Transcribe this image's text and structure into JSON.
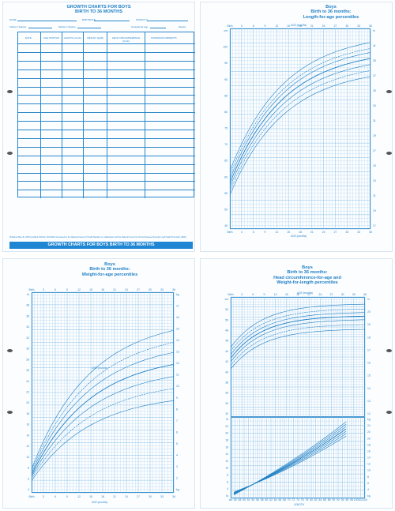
{
  "form": {
    "title_line1": "GROWTH CHARTS FOR BOYS",
    "title_line2": "BIRTH TO 36 MONTHS",
    "field_name": "NAME",
    "field_birthdate": "BIRTHDATE",
    "field_patient": "PATIENT #",
    "field_fathers": "Father's Stature",
    "field_mothers": "Mother's Stature",
    "field_gestational": "Gestational Age",
    "field_weeks": "Weeks",
    "columns": [
      "DATE",
      "AGE MONTHS",
      "LENGTH (cm/in)",
      "WEIGHT (kg/lb)",
      "HEAD CIRCUMFERENCE (cm/in)",
      "FINDINGS/COMMENTS"
    ],
    "footer_note": "Published May 30, 2000 (modified 4/20/01). SOURCE: Developed by the National Center for Health Statistics in collaboration with the National Center for Chronic Disease Prevention and Health Promotion (2000).",
    "banner": "GROWTH CHARTS FOR BOYS BIRTH TO 36 MONTHS"
  },
  "chart_length": {
    "title": [
      "Boys",
      "Birth to 36 months:",
      "Length-for-age percentiles"
    ],
    "top_label": "AGE (months)",
    "bottom_label": "AGE (months)",
    "ages": [
      "Birth",
      "3",
      "6",
      "9",
      "12",
      "15",
      "18",
      "21",
      "24",
      "27",
      "30",
      "33",
      "36"
    ],
    "left_ticks": [
      "cm",
      "100",
      "95",
      "90",
      "85",
      "80",
      "75",
      "70",
      "65",
      "60",
      "55",
      "50",
      "45"
    ],
    "right_ticks": [
      "in",
      "41",
      "39",
      "37",
      "35",
      "33",
      "31",
      "29",
      "27",
      "25",
      "23",
      "21",
      "19",
      "17"
    ]
  },
  "chart_weight": {
    "title": [
      "Boys",
      "Birth to 36 months:",
      "Weight-for-age percentiles"
    ],
    "top_label": "AGE (months)",
    "bottom_label": "AGE (months)",
    "ages": [
      "Birth",
      "3",
      "6",
      "9",
      "12",
      "15",
      "18",
      "21",
      "24",
      "27",
      "30",
      "33",
      "36"
    ],
    "left_ticks": [
      "lb",
      "38",
      "36",
      "34",
      "32",
      "30",
      "28",
      "26",
      "24",
      "22",
      "20",
      "18",
      "16",
      "14",
      "12",
      "10",
      "8",
      "6",
      "4"
    ],
    "right_ticks": [
      "kg",
      "17",
      "16",
      "15",
      "14",
      "13",
      "12",
      "11",
      "10",
      "9",
      "8",
      "7",
      "6",
      "5",
      "4",
      "3",
      "2",
      "kg"
    ]
  },
  "chart_head": {
    "title": [
      "Boys",
      "Birth to 36 months:",
      "Head circumference-for-age and",
      "Weight-for-length percentiles"
    ],
    "top_label": "AGE (months)",
    "bottom_label": "LENGTH",
    "ages": [
      "Birth",
      "3",
      "6",
      "9",
      "12",
      "15",
      "18",
      "21",
      "24",
      "27",
      "30",
      "33",
      "36"
    ],
    "left_ticks": [
      "cm",
      "52",
      "50",
      "48",
      "46",
      "44",
      "42",
      "40",
      "38",
      "36",
      "34",
      "32"
    ],
    "right_ticks": [
      "in",
      "20",
      "19",
      "18",
      "17",
      "16",
      "15",
      "14",
      "13",
      "12"
    ],
    "lower_left": [
      "lb",
      "22",
      "20",
      "18",
      "16",
      "14",
      "12",
      "10",
      "8",
      "6",
      "4",
      "lb"
    ],
    "lower_right": [
      "kg",
      "24",
      "22",
      "20",
      "18",
      "16",
      "14",
      "12",
      "10",
      "8",
      "6",
      "4",
      "kg"
    ],
    "length_ticks": [
      "cm",
      "46",
      "48",
      "50",
      "52",
      "54",
      "56",
      "58",
      "60",
      "62",
      "64",
      "66",
      "68",
      "70",
      "72",
      "74",
      "76",
      "78",
      "80",
      "82",
      "84",
      "86",
      "88",
      "90",
      "92",
      "94",
      "96",
      "98",
      "100",
      "102",
      "104"
    ]
  }
}
